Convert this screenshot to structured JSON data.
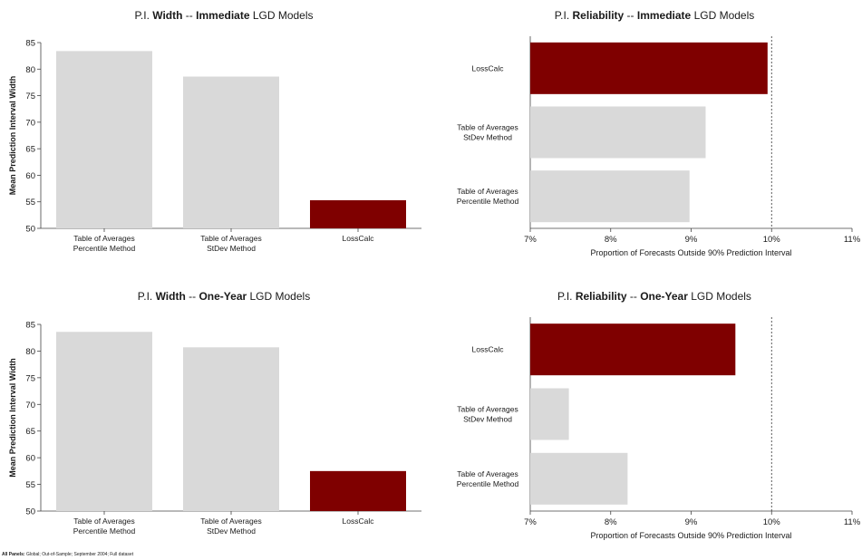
{
  "colors": {
    "highlight": "#7f0000",
    "neutral": "#d9d9d9",
    "text": "#1a1a1a"
  },
  "footnote": {
    "bold": "All Panels:",
    "text": " Global; Out-of-Sample; September 2004; Full dataset"
  },
  "chart_data": [
    {
      "type": "bar",
      "orientation": "vertical",
      "title": {
        "pre": "P.I. ",
        "bold1": "Width",
        "mid": " -- ",
        "bold2": "Immediate",
        "post": " LGD Models"
      },
      "ylabel": "Mean Prediction Interval Width",
      "xlabel": "",
      "ylim": [
        50,
        85
      ],
      "yticks": [
        "50",
        "55",
        "60",
        "65",
        "70",
        "75",
        "80",
        "85"
      ],
      "categories": [
        [
          "Table of Averages",
          "Percentile Method"
        ],
        [
          "Table of Averages",
          "StDev Method"
        ],
        [
          "LossCalc"
        ]
      ],
      "values": [
        83.4,
        78.6,
        55.3
      ],
      "highlight": [
        false,
        false,
        true
      ],
      "grid": false
    },
    {
      "type": "bar",
      "orientation": "horizontal",
      "title": {
        "pre": "P.I. ",
        "bold1": "Reliability",
        "mid": " -- ",
        "bold2": "Immediate",
        "post": " LGD Models"
      },
      "xlabel": "Proportion of Forecasts Outside 90% Prediction Interval",
      "ylabel": "",
      "xlim": [
        7,
        11
      ],
      "xticks": [
        "7%",
        "8%",
        "9%",
        "10%",
        "11%"
      ],
      "reference_line": 10,
      "categories": [
        [
          "LossCalc"
        ],
        [
          "Table of Averages",
          "StDev Method"
        ],
        [
          "Table of Averages",
          "Percentile Method"
        ]
      ],
      "values": [
        9.95,
        9.18,
        8.98
      ],
      "highlight": [
        true,
        false,
        false
      ],
      "grid": false
    },
    {
      "type": "bar",
      "orientation": "vertical",
      "title": {
        "pre": "P.I. ",
        "bold1": "Width",
        "mid": " -- ",
        "bold2": "One-Year",
        "post": " LGD Models"
      },
      "ylabel": "Mean Prediction Interval Width",
      "xlabel": "",
      "ylim": [
        50,
        85
      ],
      "yticks": [
        "50",
        "55",
        "60",
        "65",
        "70",
        "75",
        "80",
        "85"
      ],
      "categories": [
        [
          "Table of Averages",
          "Percentile Method"
        ],
        [
          "Table of Averages",
          "StDev Method"
        ],
        [
          "LossCalc"
        ]
      ],
      "values": [
        83.6,
        80.7,
        57.5
      ],
      "highlight": [
        false,
        false,
        true
      ],
      "grid": false
    },
    {
      "type": "bar",
      "orientation": "horizontal",
      "title": {
        "pre": "P.I. ",
        "bold1": "Reliability",
        "mid": " -- ",
        "bold2": "One-Year",
        "post": " LGD Models"
      },
      "xlabel": "Proportion of Forecasts Outside 90% Prediction Interval",
      "ylabel": "",
      "xlim": [
        7,
        11
      ],
      "xticks": [
        "7%",
        "8%",
        "9%",
        "10%",
        "11%"
      ],
      "reference_line": 10,
      "categories": [
        [
          "LossCalc"
        ],
        [
          "Table of Averages",
          "StDev Method"
        ],
        [
          "Table of Averages",
          "Percentile Method"
        ]
      ],
      "values": [
        9.55,
        7.48,
        8.21
      ],
      "highlight": [
        true,
        false,
        false
      ],
      "grid": false
    }
  ]
}
